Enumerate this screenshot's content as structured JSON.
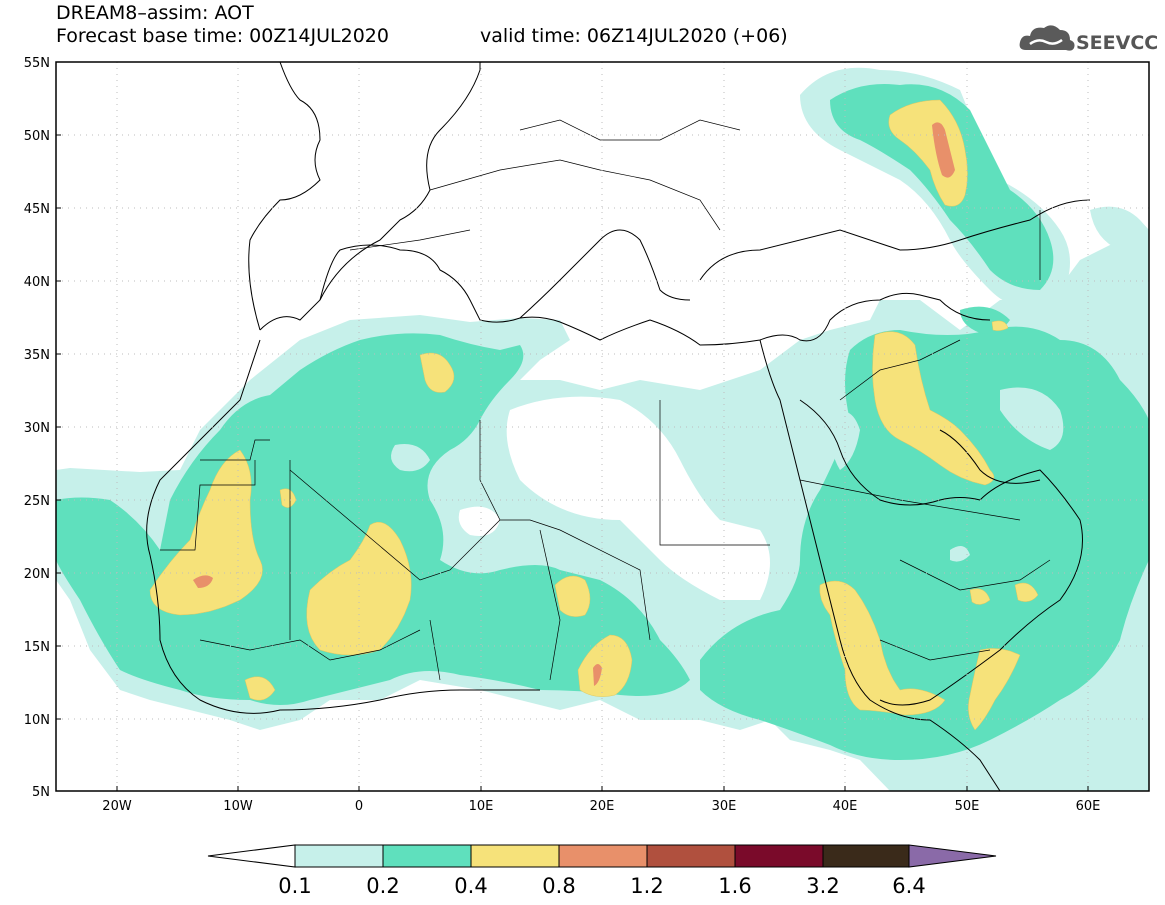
{
  "header": {
    "line1": "DREAM8–assim: AOT",
    "line2": "Forecast base time: 00Z14JUL2020",
    "line3": "valid time: 06Z14JUL2020 (+06)"
  },
  "logo": {
    "icon": "cloud-logo-icon",
    "text": "SEEVCCC"
  },
  "map": {
    "lon_range": [
      -25,
      65
    ],
    "lat_range": [
      5,
      55
    ],
    "lat_labels": [
      "55N",
      "50N",
      "45N",
      "40N",
      "35N",
      "30N",
      "25N",
      "20N",
      "15N",
      "10N",
      "5N"
    ],
    "lon_labels": [
      "20W",
      "10W",
      "0",
      "10E",
      "20E",
      "30E",
      "40E",
      "50E",
      "60E"
    ],
    "gridlines": "dotted"
  },
  "colorbar": {
    "labels": [
      "0.1",
      "0.2",
      "0.4",
      "0.8",
      "1.2",
      "1.6",
      "3.2",
      "6.4"
    ],
    "colors": [
      "#ffffff",
      "#c6f0ea",
      "#5fe0bd",
      "#f6e27a",
      "#e8906a",
      "#b0503e",
      "#7a0a2a",
      "#3a2a1a",
      "#8a6aa8"
    ]
  },
  "colors": {
    "level_0_1": "#c6f0ea",
    "level_0_2": "#5fe0bd",
    "level_0_4": "#f6e27a",
    "level_0_8": "#e8906a"
  }
}
